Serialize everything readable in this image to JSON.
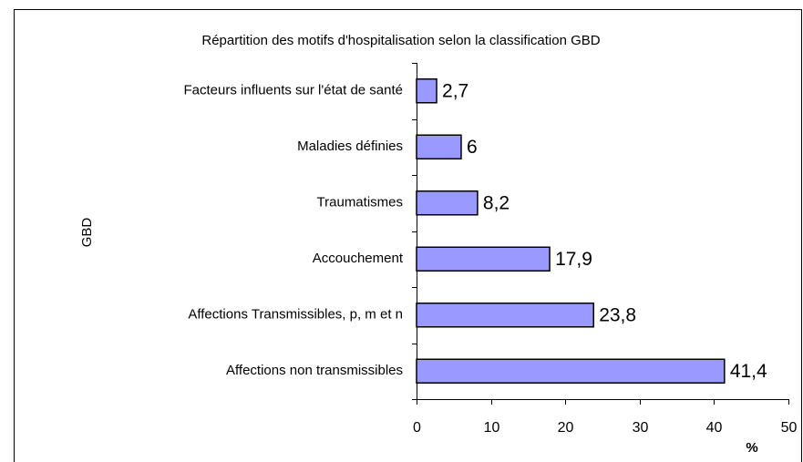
{
  "chart_data": {
    "type": "hbar",
    "title": "Répartition des motifs d'hospitalisation selon la classification GBD",
    "x_label": "%",
    "y_label": "GBD",
    "categories": [
      "Facteurs influents sur l'état de santé",
      "Maladies définies",
      "Traumatismes",
      "Accouchement",
      "Affections Transmissibles, p, m et n",
      "Affections non transmissibles"
    ],
    "values": [
      2.7,
      6,
      8.2,
      17.9,
      23.8,
      41.4
    ],
    "value_labels": [
      "2,7",
      "6",
      "8,2",
      "17,9",
      "23,8",
      "41,4"
    ],
    "color": "#9999ff",
    "xlim": [
      0,
      50
    ],
    "xticks": [
      0,
      10,
      20,
      30,
      40,
      50
    ]
  }
}
